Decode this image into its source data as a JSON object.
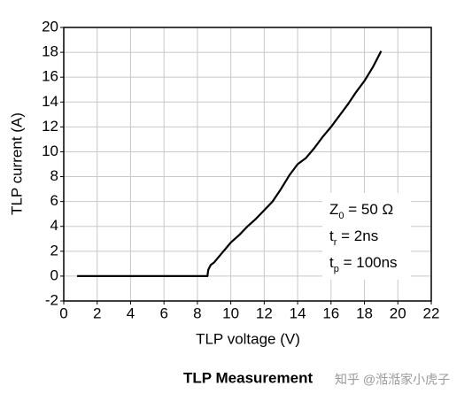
{
  "chart_data": {
    "type": "line",
    "caption": "TLP Measurement",
    "watermark": "知乎 @湉湉家小虎子",
    "xlabel": "TLP voltage (V)",
    "ylabel": "TLP current (A)",
    "xlim": [
      0,
      22
    ],
    "xticks": [
      0,
      2,
      4,
      6,
      8,
      10,
      12,
      14,
      16,
      18,
      20,
      22
    ],
    "ylim": [
      -2,
      20
    ],
    "yticks": [
      -2,
      0,
      2,
      4,
      6,
      8,
      10,
      12,
      14,
      16,
      18,
      20
    ],
    "grid": true,
    "series": [
      {
        "color": "#000000",
        "x": [
          0.8,
          8.6,
          8.65,
          8.8,
          9,
          9.5,
          10,
          10.5,
          11,
          11.5,
          12,
          12.5,
          13,
          13.5,
          14,
          14.5,
          15,
          15.5,
          16,
          16.5,
          17,
          17.5,
          18,
          18.5,
          19
        ],
        "values": [
          0,
          0,
          0.5,
          0.9,
          1.1,
          1.9,
          2.7,
          3.3,
          4,
          4.6,
          5.3,
          6,
          7,
          8.1,
          9,
          9.5,
          10.3,
          11.2,
          12,
          12.9,
          13.8,
          14.8,
          15.7,
          16.8,
          18.1
        ]
      }
    ],
    "annotations": [
      {
        "main": "Z",
        "sub": "0",
        "rest": " = 50 Ω"
      },
      {
        "main": "t",
        "sub": "r",
        "rest": " = 2ns"
      },
      {
        "main": "t",
        "sub": "p",
        "rest": " = 100ns"
      }
    ]
  }
}
